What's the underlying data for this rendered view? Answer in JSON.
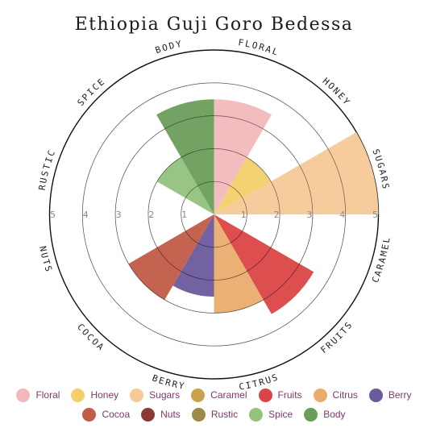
{
  "chart_data": {
    "type": "polar-bar",
    "title": "Ethiopia Guji Goro Bedessa",
    "categories": [
      "Floral",
      "Honey",
      "Sugars",
      "Caramel",
      "Fruits",
      "Citrus",
      "Berry",
      "Cocoa",
      "Nuts",
      "Rustic",
      "Spice",
      "Body"
    ],
    "axis_labels": [
      "FLORAL",
      "HONEY",
      "SUGARS",
      "CARAMEL",
      "FRUITS",
      "CITRUS",
      "BERRY",
      "COCOA",
      "NUTS",
      "RUSTIC",
      "SPICE",
      "BODY"
    ],
    "values": [
      3.5,
      2.0,
      5.0,
      0,
      3.5,
      3.0,
      2.5,
      3.0,
      0,
      0,
      2.0,
      3.5
    ],
    "colors": [
      "#f2b8bb",
      "#f2d06b",
      "#f7c998",
      "#caa24a",
      "#db4446",
      "#eaac6c",
      "#6b5a9d",
      "#c15c47",
      "#8c3a36",
      "#9b8a48",
      "#92c27d",
      "#6b9e5a"
    ],
    "rlim": [
      0,
      5
    ],
    "ticks": [
      "1",
      "2",
      "3",
      "4",
      "5"
    ],
    "grid": true,
    "legend_position": "bottom"
  }
}
